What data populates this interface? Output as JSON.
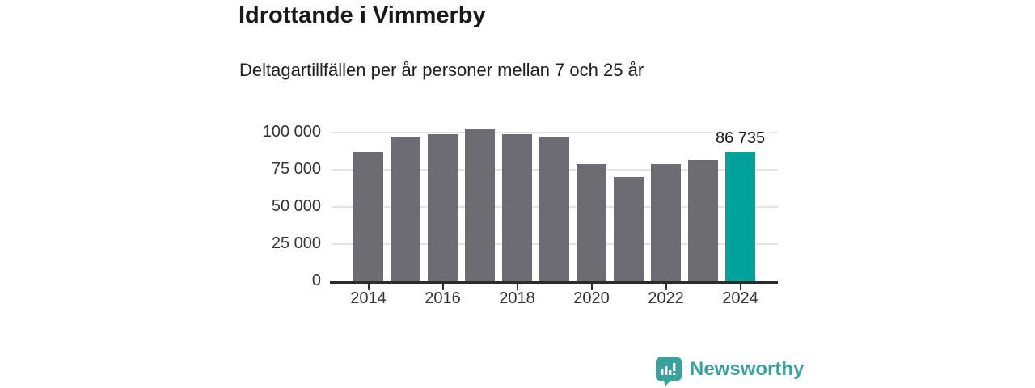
{
  "header": {
    "title": "Idrottande i Vimmerby",
    "subtitle": "Deltagartillfällen per år personer mellan 7 och 25 år"
  },
  "chart_data": {
    "type": "bar",
    "categories": [
      "2014",
      "2015",
      "2016",
      "2017",
      "2018",
      "2019",
      "2020",
      "2021",
      "2022",
      "2023",
      "2024"
    ],
    "values": [
      87000,
      97400,
      98700,
      102300,
      99100,
      96600,
      78800,
      70100,
      78700,
      81700,
      86735
    ],
    "title": "Idrottande i Vimmerby",
    "subtitle": "Deltagartillfällen per år personer mellan 7 och 25 år",
    "xlabel": "",
    "ylabel": "",
    "ylim": [
      0,
      107600
    ],
    "grid": true,
    "legend": "none",
    "y_ticks": [
      0,
      25000,
      50000,
      75000,
      100000
    ],
    "y_tick_labels": [
      "0",
      "25 000",
      "50 000",
      "75 000",
      "100 000"
    ],
    "x_tick_labels": [
      "2014",
      "2016",
      "2018",
      "2020",
      "2022",
      "2024"
    ],
    "highlight_index": 10,
    "highlight_label": "86 735",
    "bar_color": "#6d6c72",
    "highlight_color": "#00a29b"
  },
  "footer": {
    "brand": "Newsworthy",
    "brand_color": "#38a39d",
    "logo_icon": "bar-chart-speech-bubble"
  }
}
